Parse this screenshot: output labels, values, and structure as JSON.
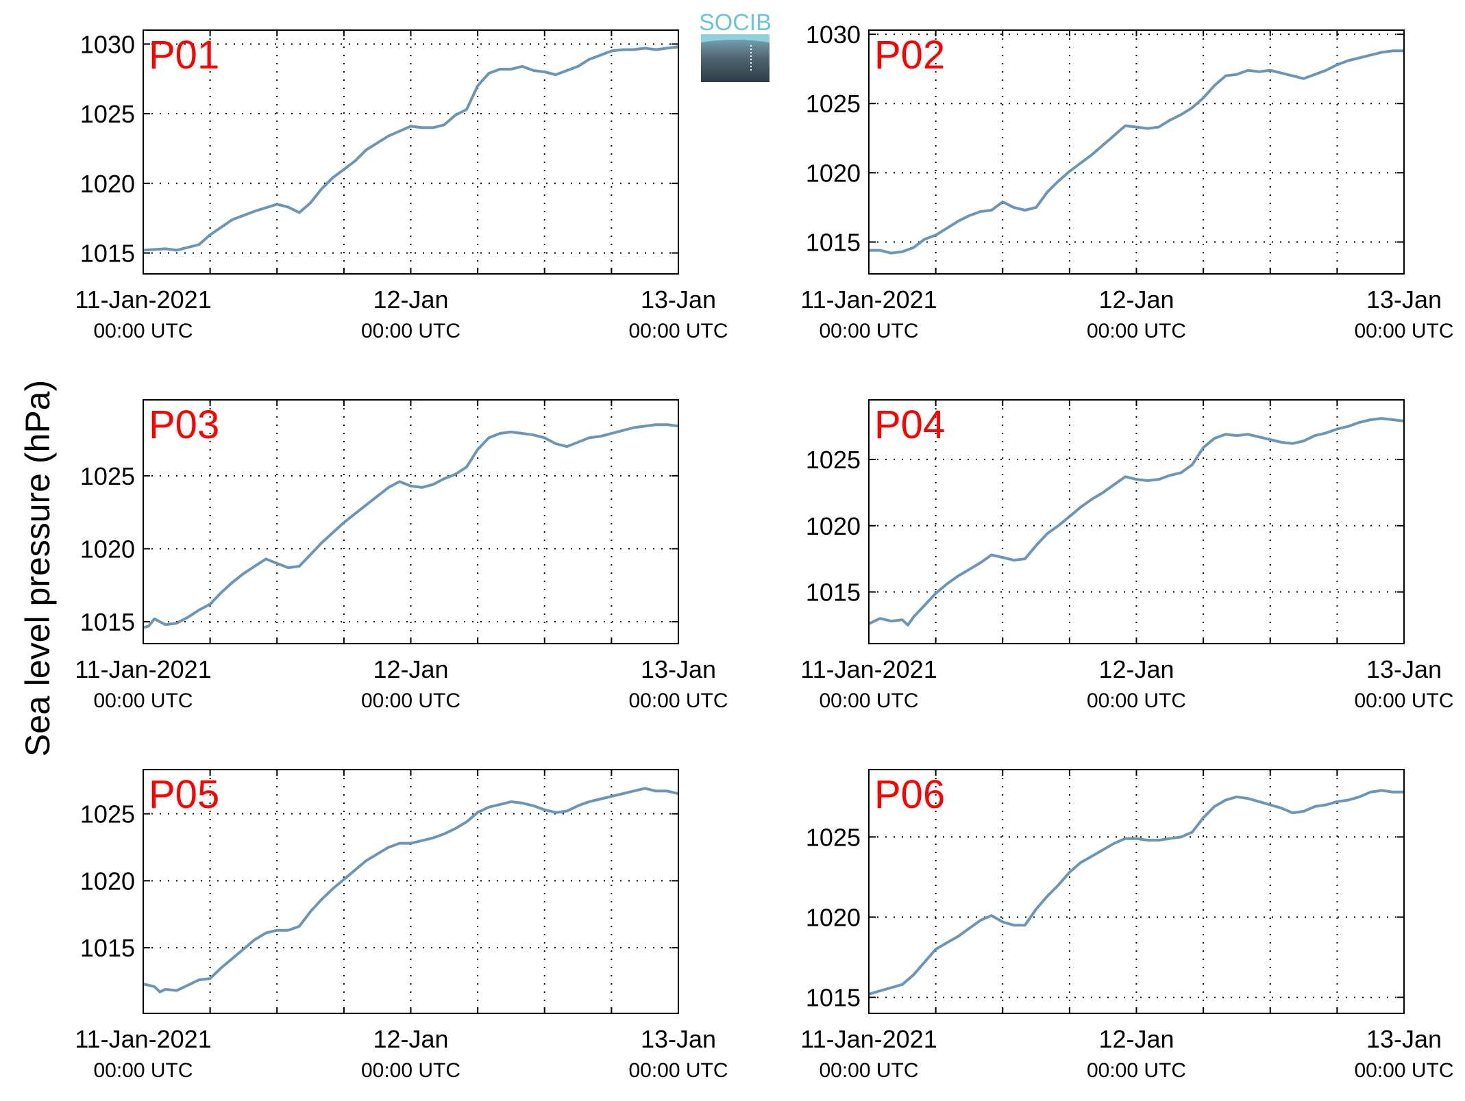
{
  "figure": {
    "ylabel": "Sea level pressure (hPa)",
    "logo_text": "SOCIB",
    "line_color": "#6b96b8",
    "station_label_color": "#ff0000"
  },
  "chart_data": [
    {
      "type": "line",
      "station": "P01",
      "xlim": [
        0,
        48
      ],
      "ylim": [
        1013.5,
        1031
      ],
      "yticks": [
        1015,
        1020,
        1025,
        1030
      ],
      "xticks": [
        {
          "x": 0,
          "label": "11-Jan-2021",
          "sublabel": "00:00 UTC"
        },
        {
          "x": 24,
          "label": "12-Jan",
          "sublabel": "00:00 UTC"
        },
        {
          "x": 48,
          "label": "13-Jan",
          "sublabel": "00:00 UTC"
        }
      ],
      "grid": true,
      "x": [
        0,
        2,
        3,
        4,
        5,
        6,
        8,
        10,
        12,
        13,
        14,
        15,
        16,
        17,
        18,
        19,
        20,
        22,
        24,
        25,
        26,
        27,
        28,
        29,
        30,
        31,
        32,
        33,
        34,
        35,
        36,
        37,
        38,
        39,
        40,
        41,
        42,
        43,
        44,
        45,
        46,
        47,
        48
      ],
      "y": [
        1015.2,
        1015.3,
        1015.2,
        1015.4,
        1015.6,
        1016.3,
        1017.4,
        1018.0,
        1018.5,
        1018.3,
        1017.9,
        1018.6,
        1019.6,
        1020.4,
        1021.0,
        1021.6,
        1022.4,
        1023.4,
        1024.1,
        1024.0,
        1024.0,
        1024.2,
        1024.9,
        1025.3,
        1027.0,
        1027.9,
        1028.2,
        1028.2,
        1028.4,
        1028.1,
        1028.0,
        1027.8,
        1028.1,
        1028.4,
        1028.9,
        1029.2,
        1029.5,
        1029.6,
        1029.6,
        1029.7,
        1029.6,
        1029.7,
        1029.8
      ]
    },
    {
      "type": "line",
      "station": "P02",
      "xlim": [
        0,
        48
      ],
      "ylim": [
        1012.7,
        1030.3
      ],
      "yticks": [
        1015,
        1020,
        1025,
        1030
      ],
      "xticks": [
        {
          "x": 0,
          "label": "11-Jan-2021",
          "sublabel": "00:00 UTC"
        },
        {
          "x": 24,
          "label": "12-Jan",
          "sublabel": "00:00 UTC"
        },
        {
          "x": 48,
          "label": "13-Jan",
          "sublabel": "00:00 UTC"
        }
      ],
      "grid": true,
      "x": [
        0,
        1,
        2,
        3,
        4,
        5,
        6,
        7,
        8,
        9,
        10,
        11,
        12,
        13,
        14,
        15,
        16,
        17,
        18,
        19,
        20,
        21,
        22,
        23,
        24,
        25,
        26,
        27,
        28,
        29,
        30,
        31,
        32,
        33,
        34,
        35,
        36,
        37,
        38,
        39,
        40,
        41,
        42,
        43,
        44,
        45,
        46,
        47,
        48
      ],
      "y": [
        1014.4,
        1014.4,
        1014.2,
        1014.3,
        1014.6,
        1015.2,
        1015.5,
        1016.0,
        1016.5,
        1016.9,
        1017.2,
        1017.3,
        1017.9,
        1017.5,
        1017.3,
        1017.5,
        1018.6,
        1019.4,
        1020.1,
        1020.7,
        1021.3,
        1022.0,
        1022.7,
        1023.4,
        1023.3,
        1023.2,
        1023.3,
        1023.8,
        1024.2,
        1024.7,
        1025.4,
        1026.3,
        1027.0,
        1027.1,
        1027.4,
        1027.3,
        1027.4,
        1027.2,
        1027.0,
        1026.8,
        1027.1,
        1027.4,
        1027.8,
        1028.1,
        1028.3,
        1028.5,
        1028.7,
        1028.8,
        1028.8
      ]
    },
    {
      "type": "line",
      "station": "P03",
      "xlim": [
        0,
        48
      ],
      "ylim": [
        1013.5,
        1030.2
      ],
      "yticks": [
        1015,
        1020,
        1025
      ],
      "xticks": [
        {
          "x": 0,
          "label": "11-Jan-2021",
          "sublabel": "00:00 UTC"
        },
        {
          "x": 24,
          "label": "12-Jan",
          "sublabel": "00:00 UTC"
        },
        {
          "x": 48,
          "label": "13-Jan",
          "sublabel": "00:00 UTC"
        }
      ],
      "grid": true,
      "x": [
        0,
        0.5,
        1,
        2,
        3,
        4,
        5,
        6,
        7,
        8,
        9,
        10,
        11,
        12,
        13,
        14,
        15,
        16,
        17,
        18,
        19,
        20,
        21,
        22,
        23,
        24,
        25,
        26,
        27,
        28,
        29,
        30,
        31,
        32,
        33,
        34,
        35,
        36,
        37,
        38,
        39,
        40,
        41,
        42,
        43,
        44,
        45,
        46,
        47,
        48
      ],
      "y": [
        1014.6,
        1014.7,
        1015.2,
        1014.8,
        1014.9,
        1015.3,
        1015.8,
        1016.2,
        1017.0,
        1017.7,
        1018.3,
        1018.8,
        1019.3,
        1019.0,
        1018.7,
        1018.8,
        1019.6,
        1020.4,
        1021.1,
        1021.8,
        1022.4,
        1023.0,
        1023.6,
        1024.2,
        1024.6,
        1024.3,
        1024.2,
        1024.4,
        1024.8,
        1025.1,
        1025.6,
        1026.8,
        1027.6,
        1027.9,
        1028.0,
        1027.9,
        1027.8,
        1027.6,
        1027.2,
        1027.0,
        1027.3,
        1027.6,
        1027.7,
        1027.9,
        1028.1,
        1028.3,
        1028.4,
        1028.5,
        1028.5,
        1028.4
      ]
    },
    {
      "type": "line",
      "station": "P04",
      "xlim": [
        0,
        48
      ],
      "ylim": [
        1011.1,
        1029.5
      ],
      "yticks": [
        1015,
        1020,
        1025
      ],
      "xticks": [
        {
          "x": 0,
          "label": "11-Jan-2021",
          "sublabel": "00:00 UTC"
        },
        {
          "x": 24,
          "label": "12-Jan",
          "sublabel": "00:00 UTC"
        },
        {
          "x": 48,
          "label": "13-Jan",
          "sublabel": "00:00 UTC"
        }
      ],
      "grid": true,
      "x": [
        0,
        1,
        2,
        3,
        3.5,
        4,
        5,
        6,
        7,
        8,
        9,
        10,
        11,
        12,
        13,
        14,
        15,
        16,
        17,
        18,
        19,
        20,
        21,
        22,
        23,
        24,
        25,
        26,
        27,
        28,
        29,
        30,
        31,
        32,
        33,
        34,
        35,
        36,
        37,
        38,
        39,
        40,
        41,
        42,
        43,
        44,
        45,
        46,
        47,
        48
      ],
      "y": [
        1012.6,
        1013.0,
        1012.8,
        1012.9,
        1012.5,
        1013.1,
        1014.0,
        1014.9,
        1015.6,
        1016.2,
        1016.7,
        1017.2,
        1017.8,
        1017.6,
        1017.4,
        1017.5,
        1018.5,
        1019.4,
        1020.0,
        1020.7,
        1021.4,
        1022.0,
        1022.5,
        1023.1,
        1023.7,
        1023.5,
        1023.4,
        1023.5,
        1023.8,
        1024.0,
        1024.6,
        1025.9,
        1026.6,
        1026.9,
        1026.8,
        1026.9,
        1026.7,
        1026.5,
        1026.3,
        1026.2,
        1026.4,
        1026.8,
        1027.0,
        1027.3,
        1027.5,
        1027.8,
        1028.0,
        1028.1,
        1028.0,
        1027.9
      ]
    },
    {
      "type": "line",
      "station": "P05",
      "xlim": [
        0,
        48
      ],
      "ylim": [
        1010.1,
        1028.3
      ],
      "yticks": [
        1015,
        1020,
        1025
      ],
      "xticks": [
        {
          "x": 0,
          "label": "11-Jan-2021",
          "sublabel": "00:00 UTC"
        },
        {
          "x": 24,
          "label": "12-Jan",
          "sublabel": "00:00 UTC"
        },
        {
          "x": 48,
          "label": "13-Jan",
          "sublabel": "00:00 UTC"
        }
      ],
      "grid": true,
      "x": [
        0,
        1,
        1.5,
        2,
        3,
        4,
        5,
        6,
        7,
        8,
        9,
        10,
        11,
        12,
        13,
        14,
        15,
        16,
        17,
        18,
        19,
        20,
        21,
        22,
        23,
        24,
        25,
        26,
        27,
        28,
        29,
        30,
        31,
        32,
        33,
        34,
        35,
        36,
        37,
        38,
        39,
        40,
        41,
        42,
        43,
        44,
        45,
        46,
        47,
        48
      ],
      "y": [
        1012.3,
        1012.1,
        1011.7,
        1011.9,
        1011.8,
        1012.2,
        1012.6,
        1012.7,
        1013.5,
        1014.2,
        1014.9,
        1015.6,
        1016.1,
        1016.3,
        1016.3,
        1016.6,
        1017.7,
        1018.6,
        1019.4,
        1020.1,
        1020.8,
        1021.5,
        1022.0,
        1022.5,
        1022.8,
        1022.8,
        1023.0,
        1023.2,
        1023.5,
        1023.9,
        1024.4,
        1025.1,
        1025.5,
        1025.7,
        1025.9,
        1025.8,
        1025.6,
        1025.3,
        1025.1,
        1025.2,
        1025.6,
        1025.9,
        1026.1,
        1026.3,
        1026.5,
        1026.7,
        1026.9,
        1026.7,
        1026.7,
        1026.5
      ]
    },
    {
      "type": "line",
      "station": "P06",
      "xlim": [
        0,
        48
      ],
      "ylim": [
        1014.0,
        1029.2
      ],
      "yticks": [
        1015,
        1020,
        1025
      ],
      "xticks": [
        {
          "x": 0,
          "label": "11-Jan-2021",
          "sublabel": "00:00 UTC"
        },
        {
          "x": 24,
          "label": "12-Jan",
          "sublabel": "00:00 UTC"
        },
        {
          "x": 48,
          "label": "13-Jan",
          "sublabel": "00:00 UTC"
        }
      ],
      "grid": true,
      "x": [
        0,
        1,
        2,
        3,
        4,
        5,
        6,
        7,
        8,
        9,
        10,
        11,
        12,
        13,
        14,
        15,
        16,
        17,
        18,
        19,
        20,
        21,
        22,
        23,
        24,
        25,
        26,
        27,
        28,
        29,
        30,
        31,
        32,
        33,
        34,
        35,
        36,
        37,
        38,
        39,
        40,
        41,
        42,
        43,
        44,
        45,
        46,
        47,
        48
      ],
      "y": [
        1015.2,
        1015.4,
        1015.6,
        1015.8,
        1016.4,
        1017.2,
        1018.0,
        1018.4,
        1018.8,
        1019.3,
        1019.8,
        1020.1,
        1019.7,
        1019.5,
        1019.5,
        1020.5,
        1021.3,
        1022.0,
        1022.8,
        1023.4,
        1023.8,
        1024.2,
        1024.6,
        1024.9,
        1024.9,
        1024.8,
        1024.8,
        1024.9,
        1025.0,
        1025.3,
        1026.2,
        1026.9,
        1027.3,
        1027.5,
        1027.4,
        1027.2,
        1027.0,
        1026.8,
        1026.5,
        1026.6,
        1026.9,
        1027.0,
        1027.2,
        1027.3,
        1027.5,
        1027.8,
        1027.9,
        1027.8,
        1027.8
      ]
    }
  ]
}
